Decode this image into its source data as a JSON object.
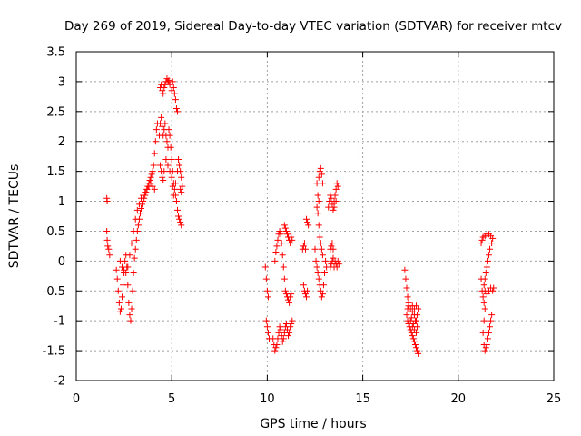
{
  "chart_data": {
    "type": "scatter",
    "title": "Day 269 of 2019, Sidereal Day-to-day VTEC variation (SDTVAR) for receiver mtcv",
    "xlabel": "GPS time / hours",
    "ylabel": "SDTVAR / TECUs",
    "xlim": [
      0,
      25
    ],
    "ylim": [
      -2,
      3.5
    ],
    "xticks": [
      "0",
      "5",
      "10",
      "15",
      "20",
      "25"
    ],
    "yticks": [
      "-2",
      "-1.5",
      "-1",
      "-0.5",
      "0",
      "0.5",
      "1",
      "1.5",
      "2",
      "2.5",
      "3",
      "3.5"
    ],
    "grid": true,
    "marker": "+",
    "color": "#ff0000",
    "segments": [
      [
        [
          1.6,
          1.05
        ],
        [
          1.62,
          1.0
        ],
        [
          1.6,
          0.5
        ],
        [
          1.62,
          0.35
        ],
        [
          1.65,
          0.25
        ],
        [
          1.7,
          0.2
        ],
        [
          1.75,
          0.1
        ]
      ],
      [
        [
          2.1,
          -0.15
        ],
        [
          2.15,
          -0.3
        ],
        [
          2.2,
          -0.5
        ],
        [
          2.25,
          -0.7
        ],
        [
          2.3,
          -0.85
        ],
        [
          2.35,
          -0.8
        ],
        [
          2.4,
          -0.6
        ],
        [
          2.45,
          -0.4
        ],
        [
          2.5,
          -0.2
        ],
        [
          2.55,
          0.0
        ],
        [
          2.6,
          0.1
        ],
        [
          2.65,
          -0.1
        ],
        [
          2.7,
          -0.4
        ],
        [
          2.75,
          -0.7
        ],
        [
          2.8,
          -0.9
        ],
        [
          2.85,
          -1.0
        ],
        [
          2.9,
          -0.8
        ],
        [
          2.95,
          -0.5
        ],
        [
          3.0,
          -0.2
        ],
        [
          3.05,
          0.05
        ],
        [
          3.1,
          0.2
        ],
        [
          3.15,
          0.35
        ],
        [
          3.2,
          0.5
        ],
        [
          3.25,
          0.6
        ],
        [
          3.3,
          0.7
        ],
        [
          3.35,
          0.8
        ],
        [
          3.4,
          0.88
        ],
        [
          3.45,
          0.95
        ],
        [
          3.5,
          1.0
        ],
        [
          3.55,
          1.05
        ],
        [
          3.6,
          1.1
        ],
        [
          3.65,
          1.15
        ],
        [
          3.7,
          1.2
        ],
        [
          3.75,
          1.25
        ],
        [
          3.8,
          1.3
        ],
        [
          3.85,
          1.35
        ],
        [
          3.9,
          1.4
        ],
        [
          3.95,
          1.45
        ],
        [
          4.0,
          1.5
        ],
        [
          4.05,
          1.6
        ],
        [
          4.1,
          1.8
        ],
        [
          4.15,
          2.0
        ],
        [
          4.2,
          2.2
        ],
        [
          4.25,
          2.3
        ]
      ],
      [
        [
          2.3,
          0.0
        ],
        [
          2.4,
          -0.1
        ],
        [
          2.5,
          -0.15
        ],
        [
          2.6,
          -0.2
        ],
        [
          2.7,
          -0.1
        ],
        [
          2.8,
          0.1
        ],
        [
          2.9,
          0.3
        ],
        [
          3.0,
          0.5
        ],
        [
          3.1,
          0.7
        ],
        [
          3.2,
          0.85
        ],
        [
          3.3,
          0.95
        ],
        [
          3.4,
          1.05
        ],
        [
          3.5,
          1.1
        ],
        [
          3.6,
          1.15
        ],
        [
          3.7,
          1.2
        ],
        [
          3.8,
          1.25
        ],
        [
          3.9,
          1.3
        ],
        [
          4.0,
          1.25
        ],
        [
          4.1,
          1.2
        ]
      ],
      [
        [
          4.4,
          2.9
        ],
        [
          4.45,
          2.95
        ],
        [
          4.5,
          2.85
        ],
        [
          4.55,
          2.8
        ],
        [
          4.6,
          2.9
        ],
        [
          4.65,
          2.95
        ],
        [
          4.7,
          3.0
        ],
        [
          4.75,
          3.05
        ],
        [
          4.8,
          3.0
        ],
        [
          4.85,
          3.02
        ],
        [
          4.9,
          2.95
        ],
        [
          5.0,
          2.85
        ],
        [
          5.05,
          3.0
        ],
        [
          5.1,
          2.9
        ],
        [
          5.15,
          2.8
        ],
        [
          5.2,
          2.7
        ],
        [
          5.25,
          2.55
        ],
        [
          5.3,
          2.5
        ]
      ],
      [
        [
          4.35,
          2.1
        ],
        [
          4.4,
          2.3
        ],
        [
          4.45,
          2.4
        ],
        [
          4.5,
          2.25
        ],
        [
          4.55,
          2.1
        ],
        [
          4.6,
          2.2
        ],
        [
          4.65,
          2.3
        ],
        [
          4.7,
          2.1
        ],
        [
          4.75,
          2.0
        ],
        [
          4.8,
          1.9
        ],
        [
          4.85,
          2.2
        ],
        [
          4.9,
          2.1
        ],
        [
          4.95,
          1.9
        ],
        [
          5.0,
          1.7
        ],
        [
          5.05,
          1.5
        ],
        [
          5.1,
          1.3
        ],
        [
          5.15,
          1.2
        ],
        [
          5.2,
          1.1
        ],
        [
          5.25,
          1.0
        ],
        [
          5.3,
          0.85
        ],
        [
          5.35,
          0.75
        ],
        [
          5.4,
          0.7
        ],
        [
          5.45,
          0.65
        ],
        [
          5.5,
          0.6
        ]
      ],
      [
        [
          4.4,
          1.6
        ],
        [
          4.45,
          1.5
        ],
        [
          4.5,
          1.4
        ],
        [
          4.55,
          1.35
        ],
        [
          4.6,
          1.5
        ],
        [
          4.7,
          1.7
        ],
        [
          4.8,
          1.6
        ],
        [
          4.9,
          1.5
        ],
        [
          5.0,
          1.4
        ],
        [
          5.05,
          1.25
        ],
        [
          5.1,
          1.1
        ],
        [
          5.2,
          1.3
        ],
        [
          5.3,
          1.5
        ],
        [
          5.35,
          1.7
        ],
        [
          5.4,
          1.6
        ],
        [
          5.45,
          1.5
        ],
        [
          5.5,
          1.4
        ],
        [
          5.55,
          1.25
        ],
        [
          5.5,
          1.15
        ],
        [
          5.45,
          1.2
        ]
      ],
      [
        [
          9.9,
          -0.1
        ],
        [
          9.95,
          -0.3
        ],
        [
          10.0,
          -0.5
        ],
        [
          10.05,
          -0.6
        ],
        [
          9.95,
          -1.0
        ],
        [
          10.0,
          -1.1
        ],
        [
          10.05,
          -1.2
        ],
        [
          10.1,
          -1.3
        ]
      ],
      [
        [
          10.3,
          -1.3
        ],
        [
          10.35,
          -1.4
        ],
        [
          10.4,
          -1.5
        ],
        [
          10.45,
          -1.45
        ],
        [
          10.5,
          -1.4
        ],
        [
          10.55,
          -1.3
        ],
        [
          10.6,
          -1.2
        ],
        [
          10.65,
          -1.1
        ],
        [
          10.7,
          -1.15
        ],
        [
          10.75,
          -1.25
        ],
        [
          10.8,
          -1.35
        ],
        [
          10.85,
          -1.3
        ],
        [
          10.9,
          -1.2
        ],
        [
          10.95,
          -1.1
        ],
        [
          11.0,
          -1.05
        ],
        [
          11.05,
          -1.15
        ],
        [
          11.1,
          -1.25
        ],
        [
          11.15,
          -1.2
        ],
        [
          11.2,
          -1.1
        ],
        [
          11.25,
          -1.05
        ],
        [
          11.3,
          -1.0
        ]
      ],
      [
        [
          10.4,
          0.0
        ],
        [
          10.45,
          0.15
        ],
        [
          10.5,
          0.25
        ],
        [
          10.55,
          0.35
        ],
        [
          10.6,
          0.45
        ],
        [
          10.65,
          0.5
        ],
        [
          10.7,
          0.45
        ],
        [
          10.75,
          0.3
        ],
        [
          10.8,
          0.1
        ],
        [
          10.85,
          -0.1
        ],
        [
          10.9,
          -0.3
        ],
        [
          10.95,
          -0.5
        ],
        [
          11.0,
          -0.55
        ],
        [
          11.05,
          -0.6
        ],
        [
          11.1,
          -0.65
        ],
        [
          11.15,
          -0.7
        ],
        [
          11.2,
          -0.6
        ],
        [
          11.25,
          -0.55
        ]
      ],
      [
        [
          10.9,
          0.6
        ],
        [
          10.95,
          0.55
        ],
        [
          11.0,
          0.5
        ],
        [
          11.05,
          0.45
        ],
        [
          11.1,
          0.4
        ],
        [
          11.15,
          0.35
        ],
        [
          11.2,
          0.3
        ],
        [
          11.25,
          0.4
        ],
        [
          11.3,
          0.35
        ]
      ],
      [
        [
          11.9,
          -0.4
        ],
        [
          11.95,
          -0.5
        ],
        [
          12.0,
          -0.55
        ],
        [
          12.05,
          -0.6
        ],
        [
          12.1,
          -0.5
        ],
        [
          11.85,
          0.2
        ],
        [
          11.9,
          0.25
        ],
        [
          11.95,
          0.3
        ],
        [
          12.0,
          0.2
        ],
        [
          12.1,
          0.65
        ],
        [
          12.05,
          0.7
        ],
        [
          12.15,
          0.6
        ]
      ],
      [
        [
          12.6,
          1.3
        ],
        [
          12.7,
          1.4
        ],
        [
          12.75,
          1.5
        ],
        [
          12.8,
          1.55
        ],
        [
          12.85,
          1.45
        ],
        [
          12.9,
          1.3
        ],
        [
          12.65,
          1.1
        ],
        [
          12.7,
          1.0
        ],
        [
          12.6,
          0.9
        ],
        [
          12.65,
          0.8
        ],
        [
          12.7,
          0.6
        ],
        [
          12.75,
          0.4
        ],
        [
          12.8,
          0.3
        ],
        [
          12.85,
          0.2
        ],
        [
          12.9,
          0.1
        ]
      ],
      [
        [
          12.5,
          0.2
        ],
        [
          12.55,
          0.0
        ],
        [
          12.6,
          -0.1
        ],
        [
          12.65,
          -0.2
        ],
        [
          12.7,
          -0.3
        ],
        [
          12.75,
          -0.4
        ],
        [
          12.8,
          -0.5
        ],
        [
          12.85,
          -0.6
        ],
        [
          12.9,
          -0.55
        ],
        [
          12.95,
          -0.4
        ],
        [
          13.0,
          -0.2
        ],
        [
          13.05,
          0.0
        ],
        [
          13.1,
          -0.1
        ]
      ],
      [
        [
          13.2,
          0.9
        ],
        [
          13.25,
          1.0
        ],
        [
          13.3,
          1.1
        ],
        [
          13.35,
          1.05
        ],
        [
          13.4,
          0.95
        ],
        [
          13.45,
          0.85
        ],
        [
          13.5,
          1.0
        ],
        [
          13.55,
          1.1
        ],
        [
          13.6,
          1.2
        ],
        [
          13.65,
          1.3
        ],
        [
          13.7,
          1.25
        ],
        [
          13.6,
          1.0
        ],
        [
          13.5,
          0.9
        ]
      ],
      [
        [
          13.3,
          0.2
        ],
        [
          13.35,
          0.25
        ],
        [
          13.4,
          0.3
        ],
        [
          13.45,
          0.2
        ],
        [
          13.3,
          -0.1
        ],
        [
          13.35,
          -0.05
        ],
        [
          13.4,
          0.0
        ],
        [
          13.45,
          0.05
        ],
        [
          13.5,
          -0.1
        ],
        [
          13.55,
          0.0
        ],
        [
          13.6,
          -0.05
        ],
        [
          13.65,
          -0.1
        ],
        [
          13.7,
          0.0
        ],
        [
          13.75,
          -0.05
        ]
      ],
      [
        [
          17.2,
          -0.15
        ],
        [
          17.25,
          -0.3
        ],
        [
          17.3,
          -0.45
        ],
        [
          17.35,
          -0.6
        ],
        [
          17.4,
          -0.7
        ],
        [
          17.35,
          -0.8
        ],
        [
          17.3,
          -0.9
        ],
        [
          17.35,
          -1.0
        ],
        [
          17.4,
          -1.05
        ],
        [
          17.45,
          -1.1
        ],
        [
          17.5,
          -1.15
        ],
        [
          17.55,
          -1.2
        ],
        [
          17.6,
          -1.25
        ],
        [
          17.65,
          -1.3
        ],
        [
          17.7,
          -1.35
        ],
        [
          17.75,
          -1.4
        ],
        [
          17.8,
          -1.45
        ],
        [
          17.85,
          -1.5
        ],
        [
          17.9,
          -1.55
        ]
      ],
      [
        [
          17.4,
          -0.75
        ],
        [
          17.5,
          -0.8
        ],
        [
          17.6,
          -0.75
        ],
        [
          17.7,
          -0.8
        ],
        [
          17.8,
          -0.75
        ],
        [
          17.9,
          -0.8
        ],
        [
          17.85,
          -0.9
        ],
        [
          17.75,
          -1.0
        ],
        [
          17.65,
          -1.05
        ],
        [
          17.55,
          -0.95
        ],
        [
          17.6,
          -0.85
        ],
        [
          17.7,
          -0.9
        ],
        [
          17.8,
          -1.0
        ],
        [
          17.85,
          -1.1
        ],
        [
          17.8,
          -1.2
        ],
        [
          17.7,
          -1.15
        ],
        [
          17.6,
          -1.1
        ],
        [
          17.5,
          -1.0
        ]
      ],
      [
        [
          21.2,
          0.3
        ],
        [
          21.25,
          0.35
        ],
        [
          21.3,
          0.4
        ],
        [
          21.4,
          0.42
        ],
        [
          21.5,
          0.45
        ],
        [
          21.6,
          0.45
        ],
        [
          21.7,
          0.42
        ],
        [
          21.8,
          0.38
        ],
        [
          21.75,
          0.3
        ],
        [
          21.65,
          0.2
        ],
        [
          21.6,
          0.1
        ],
        [
          21.55,
          0.0
        ],
        [
          21.5,
          -0.1
        ],
        [
          21.45,
          -0.2
        ],
        [
          21.4,
          -0.3
        ],
        [
          21.35,
          -0.4
        ],
        [
          21.4,
          -0.5
        ],
        [
          21.5,
          -0.55
        ],
        [
          21.6,
          -0.5
        ],
        [
          21.7,
          -0.45
        ],
        [
          21.8,
          -0.5
        ],
        [
          21.85,
          -0.45
        ]
      ],
      [
        [
          21.2,
          -0.3
        ],
        [
          21.25,
          -0.5
        ],
        [
          21.3,
          -0.6
        ],
        [
          21.35,
          -0.7
        ],
        [
          21.4,
          -0.8
        ],
        [
          21.35,
          -1.0
        ],
        [
          21.3,
          -1.2
        ],
        [
          21.35,
          -1.4
        ],
        [
          21.4,
          -1.5
        ],
        [
          21.45,
          -1.45
        ],
        [
          21.5,
          -1.4
        ],
        [
          21.55,
          -1.3
        ],
        [
          21.6,
          -1.2
        ],
        [
          21.65,
          -1.1
        ],
        [
          21.7,
          -1.0
        ],
        [
          21.75,
          -0.9
        ]
      ]
    ]
  }
}
